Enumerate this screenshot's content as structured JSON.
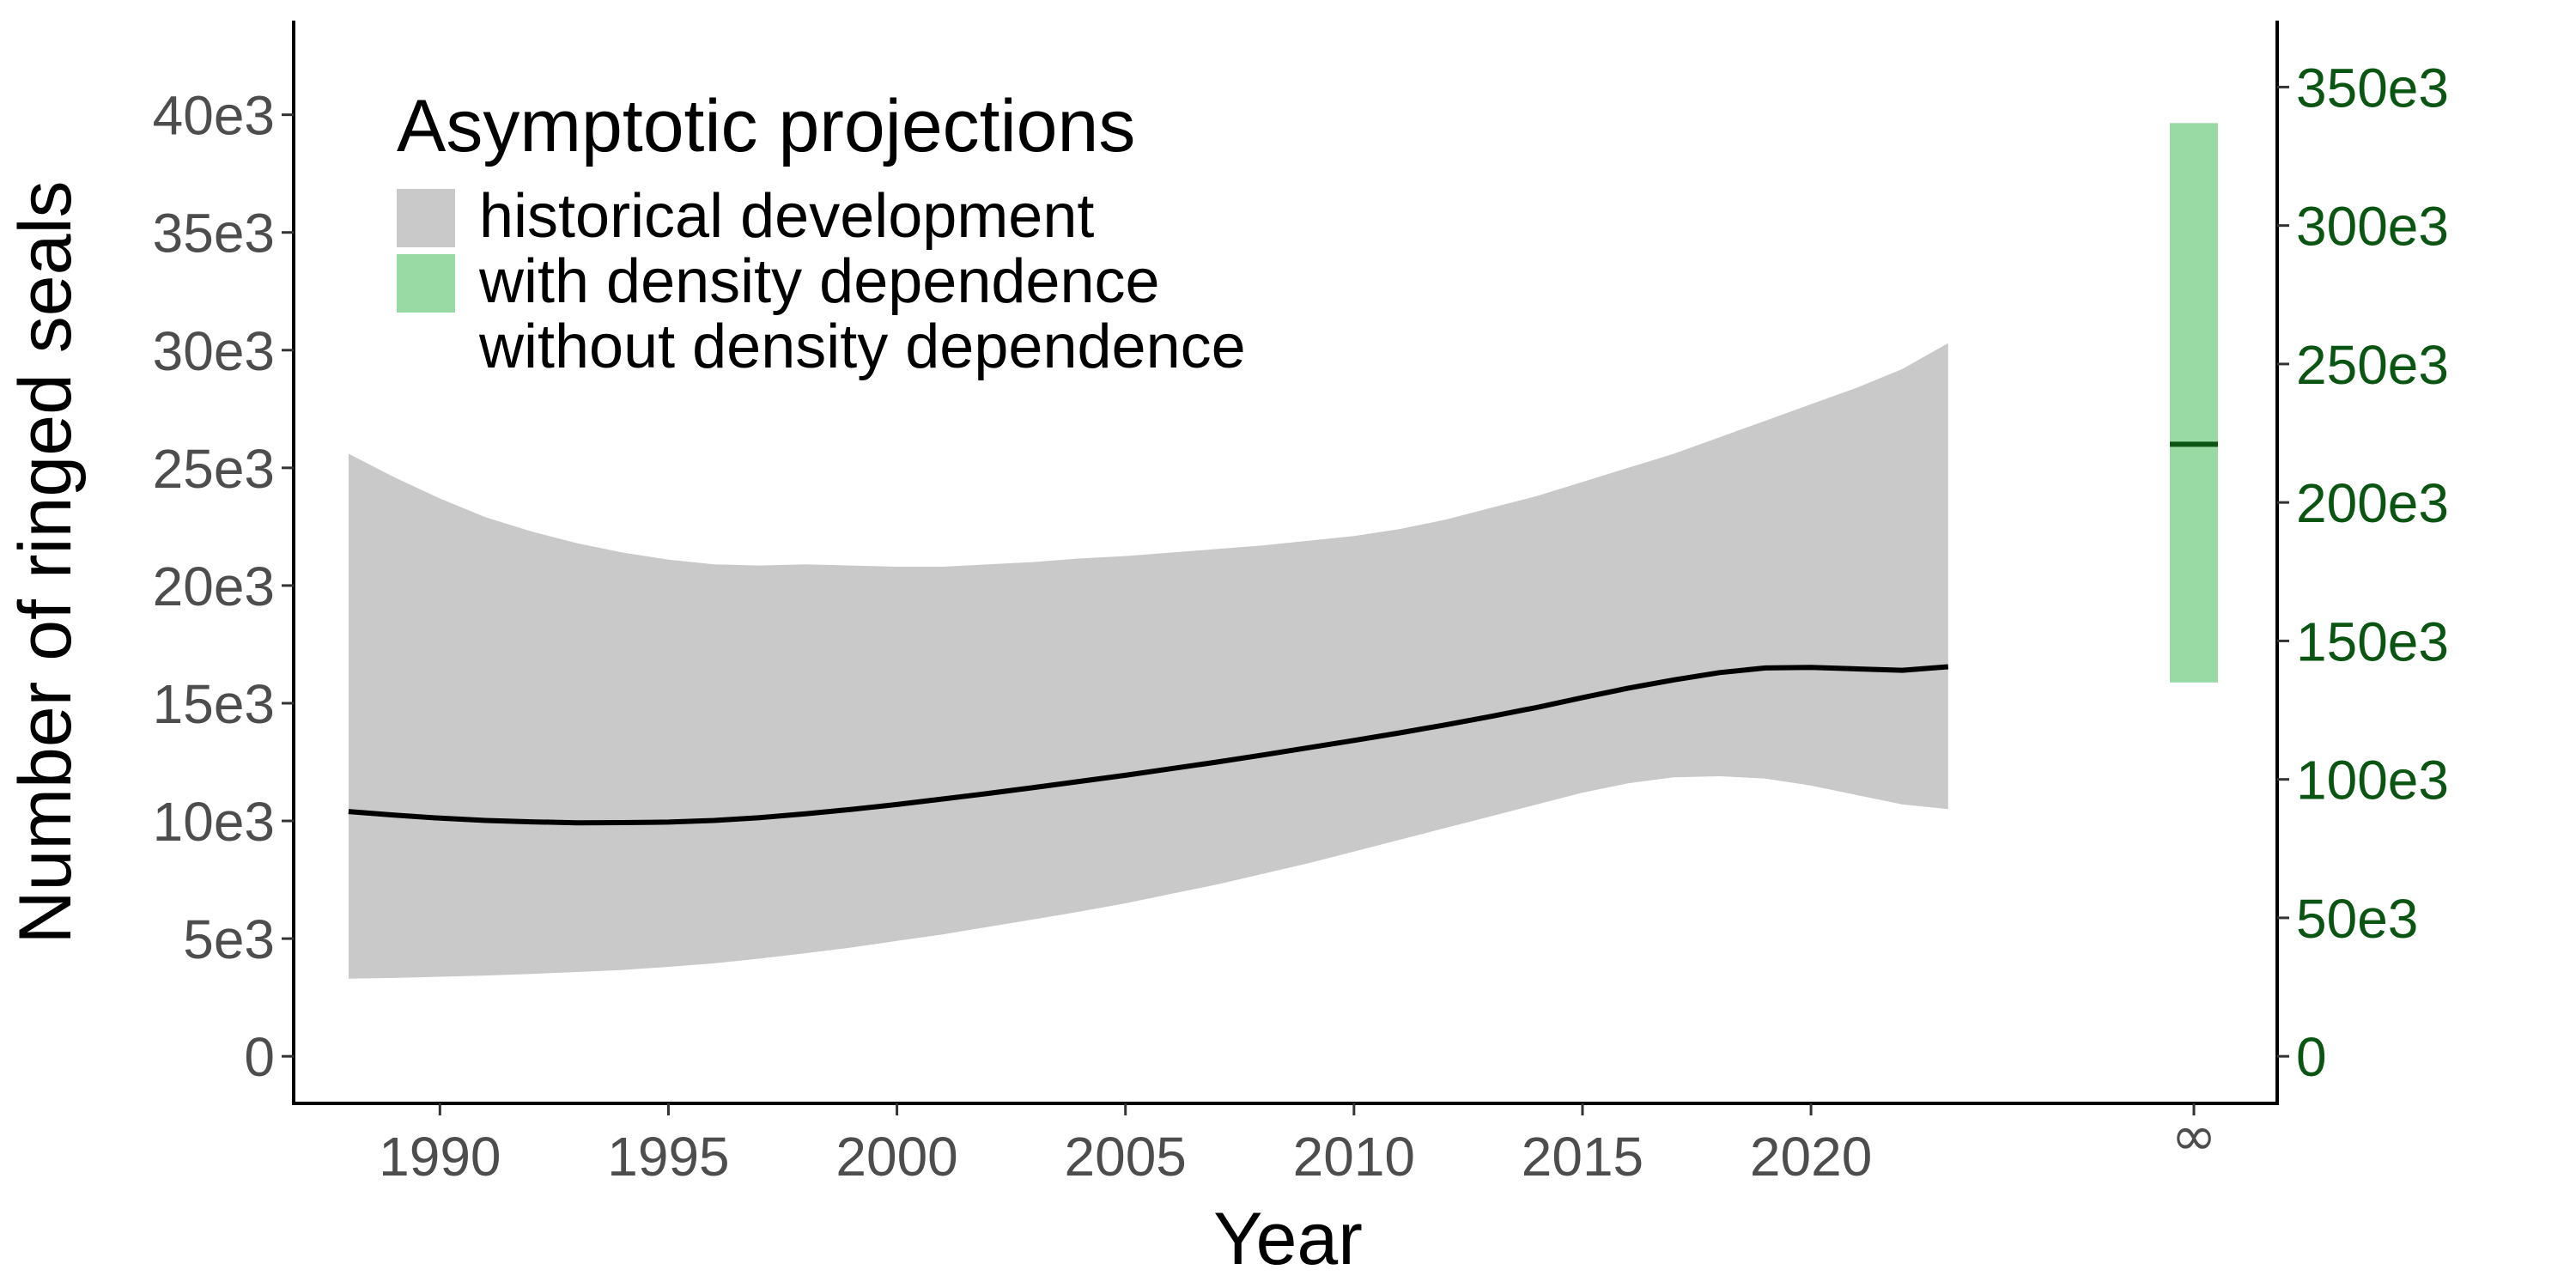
{
  "chart_data": {
    "type": "area",
    "xlabel": "Year",
    "ylabel": "Number of ringed seals",
    "xlim": [
      1986.8,
      2030.2
    ],
    "ylim": [
      -2000,
      44000
    ],
    "x_ticks": [
      1990,
      1995,
      2000,
      2005,
      2010,
      2015,
      2020
    ],
    "x_tick_labels": [
      "1990",
      "1995",
      "2000",
      "2005",
      "2010",
      "2015",
      "2020"
    ],
    "infinity_tick_label": "∞",
    "y_ticks": [
      0,
      5000,
      10000,
      15000,
      20000,
      25000,
      30000,
      35000,
      40000
    ],
    "y_tick_labels": [
      "0",
      "5e3",
      "10e3",
      "15e3",
      "20e3",
      "25e3",
      "30e3",
      "35e3",
      "40e3"
    ],
    "y2_ticks": [
      0,
      50000,
      100000,
      150000,
      200000,
      250000,
      300000,
      350000
    ],
    "y2_tick_labels": [
      "0",
      "50e3",
      "100e3",
      "150e3",
      "200e3",
      "250e3",
      "300e3",
      "350e3"
    ],
    "y2_scale_factor": 8.5,
    "grid": false,
    "legend": {
      "title": "Asymptotic projections",
      "placement": "top-left",
      "entries": [
        {
          "label": "historical development",
          "color": "#c9c9c9"
        },
        {
          "label": "with density dependence",
          "color": "#99d9a3"
        },
        {
          "label": "without density dependence",
          "color": null
        }
      ]
    },
    "series": [
      {
        "kind": "band",
        "color": "#c9c9c9",
        "x": [
          1988,
          1989,
          1990,
          1991,
          1992,
          1993,
          1994,
          1995,
          1996,
          1997,
          1998,
          1999,
          2000,
          2001,
          2002,
          2003,
          2004,
          2005,
          2006,
          2007,
          2008,
          2009,
          2010,
          2011,
          2012,
          2013,
          2014,
          2015,
          2016,
          2017,
          2018,
          2019,
          2020,
          2021,
          2022,
          2023
        ],
        "upper": [
          25600,
          24600,
          23700,
          22900,
          22300,
          21800,
          21400,
          21100,
          20900,
          20850,
          20900,
          20850,
          20800,
          20800,
          20900,
          21000,
          21150,
          21250,
          21400,
          21550,
          21700,
          21900,
          22100,
          22400,
          22800,
          23300,
          23800,
          24400,
          25000,
          25600,
          26300,
          27000,
          27700,
          28400,
          29200,
          30300
        ],
        "lower": [
          3300,
          3330,
          3380,
          3430,
          3500,
          3580,
          3670,
          3800,
          3950,
          4150,
          4380,
          4620,
          4900,
          5180,
          5500,
          5820,
          6150,
          6500,
          6900,
          7300,
          7750,
          8200,
          8700,
          9200,
          9700,
          10200,
          10700,
          11200,
          11600,
          11850,
          11900,
          11800,
          11500,
          11100,
          10700,
          10500
        ]
      },
      {
        "kind": "line",
        "color": "#000000",
        "x": [
          1988,
          1989,
          1990,
          1991,
          1992,
          1993,
          1994,
          1995,
          1996,
          1997,
          1998,
          1999,
          2000,
          2001,
          2002,
          2003,
          2004,
          2005,
          2006,
          2007,
          2008,
          2009,
          2010,
          2011,
          2012,
          2013,
          2014,
          2015,
          2016,
          2017,
          2018,
          2019,
          2020,
          2021,
          2022,
          2023
        ],
        "y": [
          10400,
          10250,
          10120,
          10020,
          9960,
          9920,
          9930,
          9950,
          10020,
          10140,
          10300,
          10490,
          10700,
          10930,
          11170,
          11420,
          11680,
          11940,
          12220,
          12500,
          12800,
          13110,
          13420,
          13740,
          14080,
          14440,
          14820,
          15240,
          15640,
          15990,
          16300,
          16500,
          16520,
          16460,
          16400,
          16550
        ]
      }
    ],
    "asymptote": {
      "position": "∞",
      "color": "#99d9a3",
      "median_color": "#0b5513",
      "axis": "right",
      "lower": 135000,
      "upper": 337000,
      "median": 221000
    }
  }
}
